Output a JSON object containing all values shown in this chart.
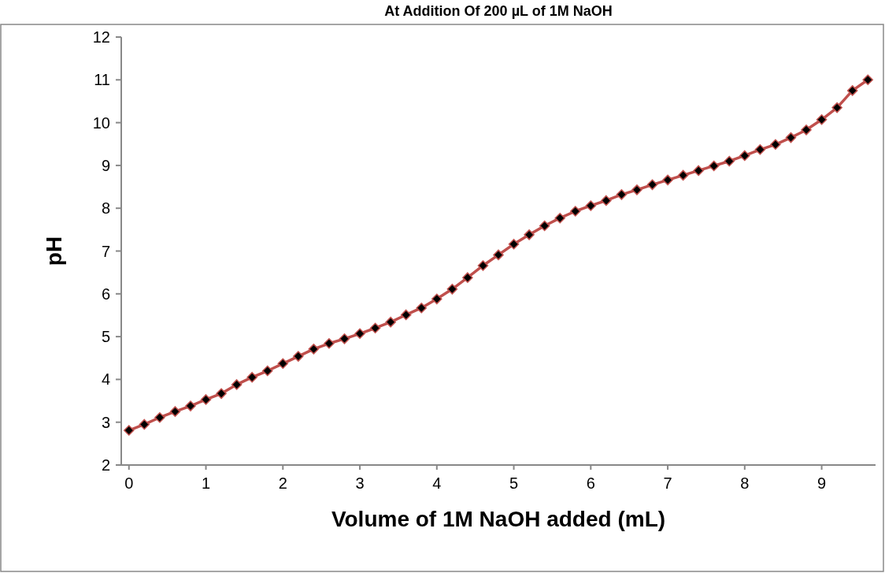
{
  "chart_data": {
    "type": "line",
    "title": "At Addition Of 200 µL of 1M NaOH",
    "xlabel": "Volume of 1M NaOH added (mL)",
    "ylabel": "pH",
    "x": [
      0,
      0.2,
      0.4,
      0.6,
      0.8,
      1,
      1.2,
      1.4,
      1.6,
      1.8,
      2,
      2.2,
      2.4,
      2.6,
      2.8,
      3,
      3.2,
      3.4,
      3.6,
      3.8,
      4,
      4.2,
      4.4,
      4.6,
      4.8,
      5,
      5.2,
      5.4,
      5.6,
      5.8,
      6,
      6.2,
      6.4,
      6.6,
      6.8,
      7,
      7.2,
      7.4,
      7.6,
      7.8,
      8,
      8.2,
      8.4,
      8.6,
      8.8,
      9,
      9.2,
      9.4,
      9.6
    ],
    "series": [
      {
        "color": "#c0504d",
        "values": [
          2.81,
          2.95,
          3.11,
          3.25,
          3.38,
          3.53,
          3.67,
          3.88,
          4.05,
          4.2,
          4.37,
          4.54,
          4.71,
          4.84,
          4.95,
          5.07,
          5.2,
          5.34,
          5.51,
          5.67,
          5.88,
          6.11,
          6.38,
          6.66,
          6.91,
          7.16,
          7.38,
          7.59,
          7.77,
          7.93,
          8.06,
          8.18,
          8.32,
          8.43,
          8.55,
          8.66,
          8.77,
          8.88,
          8.99,
          9.1,
          9.23,
          9.37,
          9.49,
          9.65,
          9.83,
          10.07,
          10.35,
          10.75,
          11.0
        ]
      }
    ],
    "xlim": [
      -0.1,
      9.7
    ],
    "xticks": [
      0,
      1,
      2,
      3,
      4,
      5,
      6,
      7,
      8,
      9
    ],
    "ylim": [
      2,
      12
    ],
    "yticks": [
      2,
      3,
      4,
      5,
      6,
      7,
      8,
      9,
      10,
      11,
      12
    ],
    "grid": false,
    "legend": false,
    "marker": "diamond",
    "line_style": "solid"
  }
}
